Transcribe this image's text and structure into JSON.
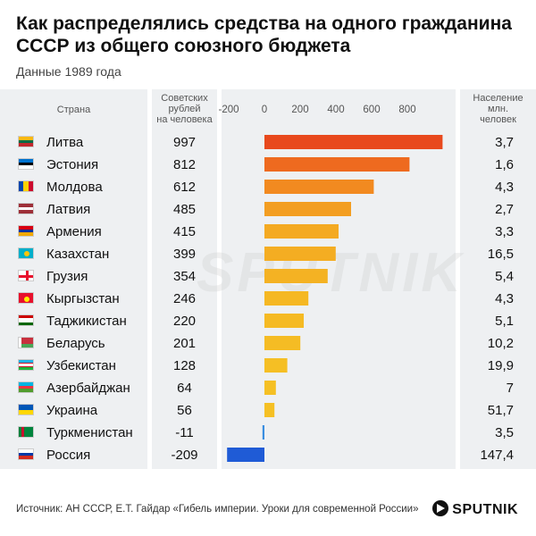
{
  "title": "Как распределялись средства на одного гражданина СССР из общего союзного бюджета",
  "subtitle": "Данные 1989 года",
  "headers": {
    "country": "Страна",
    "value": [
      "Советских",
      "рублей",
      "на человека"
    ],
    "population": [
      "Население",
      "млн.",
      "человек"
    ]
  },
  "source": "Источник: АН СССР, Е.Т. Гайдар «Гибель империи. Уроки для современной России»",
  "logo": "SPUTNIK",
  "watermark": "SPUTNIK",
  "colors": {
    "positive_high": "#e8491d",
    "positive_low": "#f5c024",
    "negative": "#1f5bd6"
  },
  "chart_data": {
    "type": "bar",
    "orientation": "horizontal",
    "xlim": [
      -250,
      1000
    ],
    "ticks": [
      -200,
      0,
      200,
      400,
      600,
      800
    ],
    "tick_labels": [
      "-200",
      "0",
      "200",
      "400",
      "600",
      "800"
    ],
    "rows": [
      {
        "country": "Литва",
        "value": 997,
        "value_label": "997",
        "population": "3,7",
        "flag": "lithuania",
        "color": "#e8491d"
      },
      {
        "country": "Эстония",
        "value": 812,
        "value_label": "812",
        "population": "1,6",
        "flag": "estonia",
        "color": "#ee6a1f"
      },
      {
        "country": "Молдова",
        "value": 612,
        "value_label": "612",
        "population": "4,3",
        "flag": "moldova",
        "color": "#f28a20"
      },
      {
        "country": "Латвия",
        "value": 485,
        "value_label": "485",
        "population": "2,7",
        "flag": "latvia",
        "color": "#f39e22"
      },
      {
        "country": "Армения",
        "value": 415,
        "value_label": "415",
        "population": "3,3",
        "flag": "armenia",
        "color": "#f4aa22"
      },
      {
        "country": "Казахстан",
        "value": 399,
        "value_label": "399",
        "population": "16,5",
        "flag": "kazakhstan",
        "color": "#f4ad22"
      },
      {
        "country": "Грузия",
        "value": 354,
        "value_label": "354",
        "population": "5,4",
        "flag": "georgia",
        "color": "#f4b223"
      },
      {
        "country": "Кыргызстан",
        "value": 246,
        "value_label": "246",
        "population": "4,3",
        "flag": "kyrgyzstan",
        "color": "#f5b823"
      },
      {
        "country": "Таджикистан",
        "value": 220,
        "value_label": "220",
        "population": "5,1",
        "flag": "tajikistan",
        "color": "#f5ba23"
      },
      {
        "country": "Беларусь",
        "value": 201,
        "value_label": "201",
        "population": "10,2",
        "flag": "belarus",
        "color": "#f5bc24"
      },
      {
        "country": "Узбекистан",
        "value": 128,
        "value_label": "128",
        "population": "19,9",
        "flag": "uzbekistan",
        "color": "#f5bf24"
      },
      {
        "country": "Азербайджан",
        "value": 64,
        "value_label": "64",
        "population": "7",
        "flag": "azerbaijan",
        "color": "#f5c024"
      },
      {
        "country": "Украина",
        "value": 56,
        "value_label": "56",
        "population": "51,7",
        "flag": "ukraine",
        "color": "#f5c024"
      },
      {
        "country": "Туркменистан",
        "value": -11,
        "value_label": "-11",
        "population": "3,5",
        "flag": "turkmenistan",
        "color": "#3a8ee0"
      },
      {
        "country": "Россия",
        "value": -209,
        "value_label": "-209",
        "population": "147,4",
        "flag": "russia",
        "color": "#1f5bd6"
      }
    ]
  }
}
